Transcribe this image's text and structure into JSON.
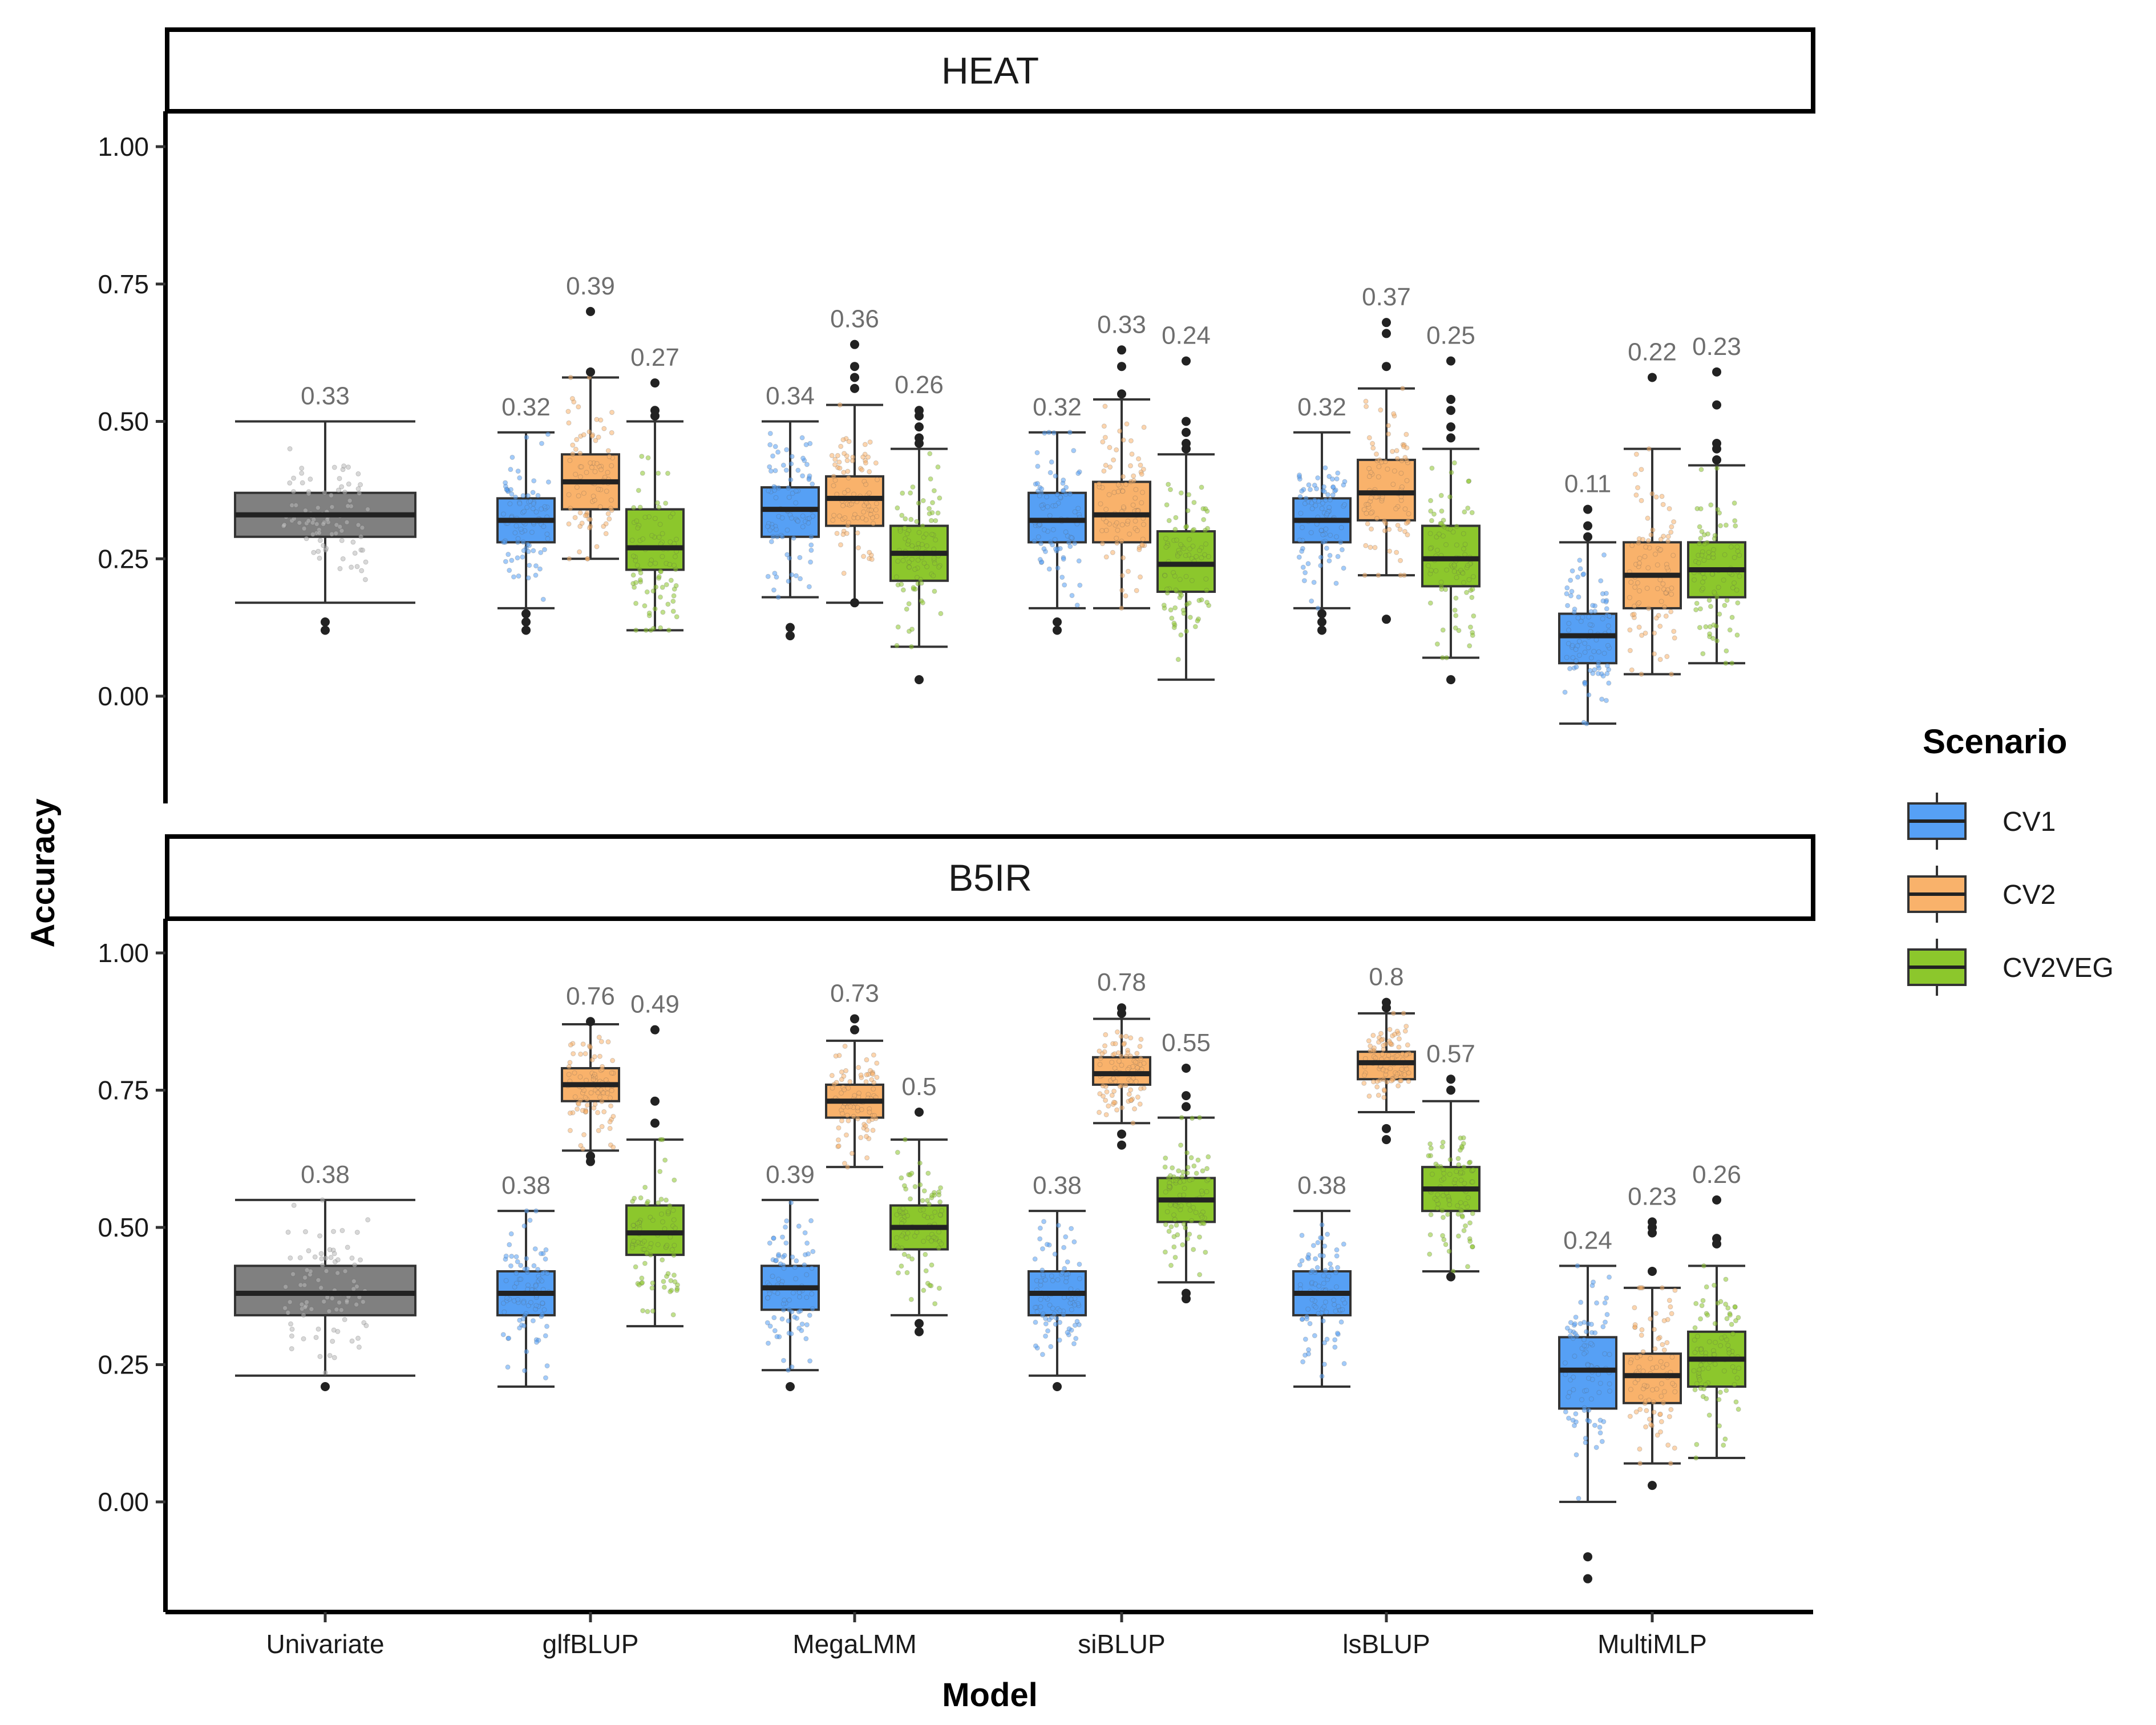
{
  "chart_data": {
    "type": "boxplot",
    "xlabel": "Model",
    "ylabel": "Accuracy",
    "legend": {
      "title": "Scenario",
      "position": "right",
      "entries": [
        {
          "name": "CV1",
          "color": "#56A0F5"
        },
        {
          "name": "CV2",
          "color": "#F9B26B"
        },
        {
          "name": "CV2VEG",
          "color": "#8CC72C"
        }
      ]
    },
    "univariate_color": "#808080",
    "categories": [
      "Univariate",
      "glfBLUP",
      "MegaLMM",
      "siBLUP",
      "lsBLUP",
      "MultiMLP"
    ],
    "ylim": [
      -0.2,
      1.05
    ],
    "yticks": [
      0.0,
      0.25,
      0.5,
      0.75,
      1.0
    ],
    "ytick_labels": [
      "0.00",
      "0.25",
      "0.50",
      "0.75",
      "1.00"
    ],
    "panels": [
      {
        "title": "HEAT",
        "boxes": [
          {
            "model": "Univariate",
            "scenario": "Univariate",
            "lw": 0.17,
            "q1": 0.29,
            "median": 0.33,
            "q3": 0.37,
            "uw": 0.5,
            "outliers": [
              0.12,
              0.135
            ],
            "label": "0.33"
          },
          {
            "model": "glfBLUP",
            "scenario": "CV1",
            "lw": 0.16,
            "q1": 0.28,
            "median": 0.32,
            "q3": 0.36,
            "uw": 0.48,
            "outliers": [
              0.12,
              0.135,
              0.15
            ],
            "label": "0.32"
          },
          {
            "model": "glfBLUP",
            "scenario": "CV2",
            "lw": 0.25,
            "q1": 0.34,
            "median": 0.39,
            "q3": 0.44,
            "uw": 0.58,
            "outliers": [
              0.59,
              0.7
            ],
            "label": "0.39"
          },
          {
            "model": "glfBLUP",
            "scenario": "CV2VEG",
            "lw": 0.12,
            "q1": 0.23,
            "median": 0.27,
            "q3": 0.34,
            "uw": 0.5,
            "outliers": [
              0.51,
              0.52,
              0.57
            ],
            "label": "0.27"
          },
          {
            "model": "MegaLMM",
            "scenario": "CV1",
            "lw": 0.18,
            "q1": 0.29,
            "median": 0.34,
            "q3": 0.38,
            "uw": 0.5,
            "outliers": [
              0.11,
              0.125
            ],
            "label": "0.34"
          },
          {
            "model": "MegaLMM",
            "scenario": "CV2",
            "lw": 0.17,
            "q1": 0.31,
            "median": 0.36,
            "q3": 0.4,
            "uw": 0.53,
            "outliers": [
              0.17,
              0.56,
              0.58,
              0.6,
              0.64
            ],
            "label": "0.36"
          },
          {
            "model": "MegaLMM",
            "scenario": "CV2VEG",
            "lw": 0.09,
            "q1": 0.21,
            "median": 0.26,
            "q3": 0.31,
            "uw": 0.45,
            "outliers": [
              0.03,
              0.46,
              0.47,
              0.49,
              0.51,
              0.52
            ],
            "label": "0.26"
          },
          {
            "model": "siBLUP",
            "scenario": "CV1",
            "lw": 0.16,
            "q1": 0.28,
            "median": 0.32,
            "q3": 0.37,
            "uw": 0.48,
            "outliers": [
              0.12,
              0.135
            ],
            "label": "0.32"
          },
          {
            "model": "siBLUP",
            "scenario": "CV2",
            "lw": 0.16,
            "q1": 0.28,
            "median": 0.33,
            "q3": 0.39,
            "uw": 0.54,
            "outliers": [
              0.55,
              0.6,
              0.63
            ],
            "label": "0.33"
          },
          {
            "model": "siBLUP",
            "scenario": "CV2VEG",
            "lw": 0.03,
            "q1": 0.19,
            "median": 0.24,
            "q3": 0.3,
            "uw": 0.44,
            "outliers": [
              0.45,
              0.46,
              0.48,
              0.5,
              0.61
            ],
            "label": "0.24"
          },
          {
            "model": "lsBLUP",
            "scenario": "CV1",
            "lw": 0.16,
            "q1": 0.28,
            "median": 0.32,
            "q3": 0.36,
            "uw": 0.48,
            "outliers": [
              0.12,
              0.135,
              0.15
            ],
            "label": "0.32"
          },
          {
            "model": "lsBLUP",
            "scenario": "CV2",
            "lw": 0.22,
            "q1": 0.32,
            "median": 0.37,
            "q3": 0.43,
            "uw": 0.56,
            "outliers": [
              0.14,
              0.6,
              0.66,
              0.68
            ],
            "label": "0.37"
          },
          {
            "model": "lsBLUP",
            "scenario": "CV2VEG",
            "lw": 0.07,
            "q1": 0.2,
            "median": 0.25,
            "q3": 0.31,
            "uw": 0.45,
            "outliers": [
              0.03,
              0.47,
              0.49,
              0.52,
              0.54,
              0.61
            ],
            "label": "0.25"
          },
          {
            "model": "MultiMLP",
            "scenario": "CV1",
            "lw": -0.05,
            "q1": 0.06,
            "median": 0.11,
            "q3": 0.15,
            "uw": 0.28,
            "outliers": [
              0.29,
              0.31,
              0.34
            ],
            "label": "0.11"
          },
          {
            "model": "MultiMLP",
            "scenario": "CV2",
            "lw": 0.04,
            "q1": 0.16,
            "median": 0.22,
            "q3": 0.28,
            "uw": 0.45,
            "outliers": [
              0.58
            ],
            "label": "0.22"
          },
          {
            "model": "MultiMLP",
            "scenario": "CV2VEG",
            "lw": 0.06,
            "q1": 0.18,
            "median": 0.23,
            "q3": 0.28,
            "uw": 0.42,
            "outliers": [
              0.43,
              0.45,
              0.46,
              0.53,
              0.59
            ],
            "label": "0.23"
          }
        ]
      },
      {
        "title": "B5IR",
        "boxes": [
          {
            "model": "Univariate",
            "scenario": "Univariate",
            "lw": 0.23,
            "q1": 0.34,
            "median": 0.38,
            "q3": 0.43,
            "uw": 0.55,
            "outliers": [
              0.21
            ],
            "label": "0.38"
          },
          {
            "model": "glfBLUP",
            "scenario": "CV1",
            "lw": 0.21,
            "q1": 0.34,
            "median": 0.38,
            "q3": 0.42,
            "uw": 0.53,
            "outliers": [],
            "label": "0.38"
          },
          {
            "model": "glfBLUP",
            "scenario": "CV2",
            "lw": 0.64,
            "q1": 0.73,
            "median": 0.76,
            "q3": 0.79,
            "uw": 0.87,
            "outliers": [
              0.62,
              0.63,
              0.875
            ],
            "label": "0.76"
          },
          {
            "model": "glfBLUP",
            "scenario": "CV2VEG",
            "lw": 0.32,
            "q1": 0.45,
            "median": 0.49,
            "q3": 0.54,
            "uw": 0.66,
            "outliers": [
              0.69,
              0.73,
              0.86
            ],
            "label": "0.49"
          },
          {
            "model": "MegaLMM",
            "scenario": "CV1",
            "lw": 0.24,
            "q1": 0.35,
            "median": 0.39,
            "q3": 0.43,
            "uw": 0.55,
            "outliers": [
              0.21
            ],
            "label": "0.39"
          },
          {
            "model": "MegaLMM",
            "scenario": "CV2",
            "lw": 0.61,
            "q1": 0.7,
            "median": 0.73,
            "q3": 0.76,
            "uw": 0.84,
            "outliers": [
              0.86,
              0.88
            ],
            "label": "0.73"
          },
          {
            "model": "MegaLMM",
            "scenario": "CV2VEG",
            "lw": 0.34,
            "q1": 0.46,
            "median": 0.5,
            "q3": 0.54,
            "uw": 0.66,
            "outliers": [
              0.31,
              0.325,
              0.71
            ],
            "label": "0.5"
          },
          {
            "model": "siBLUP",
            "scenario": "CV1",
            "lw": 0.23,
            "q1": 0.34,
            "median": 0.38,
            "q3": 0.42,
            "uw": 0.53,
            "outliers": [
              0.21
            ],
            "label": "0.38"
          },
          {
            "model": "siBLUP",
            "scenario": "CV2",
            "lw": 0.69,
            "q1": 0.76,
            "median": 0.78,
            "q3": 0.81,
            "uw": 0.88,
            "outliers": [
              0.65,
              0.67,
              0.89,
              0.9
            ],
            "label": "0.78"
          },
          {
            "model": "siBLUP",
            "scenario": "CV2VEG",
            "lw": 0.4,
            "q1": 0.51,
            "median": 0.55,
            "q3": 0.59,
            "uw": 0.7,
            "outliers": [
              0.37,
              0.38,
              0.72,
              0.74,
              0.79
            ],
            "label": "0.55"
          },
          {
            "model": "lsBLUP",
            "scenario": "CV1",
            "lw": 0.21,
            "q1": 0.34,
            "median": 0.38,
            "q3": 0.42,
            "uw": 0.53,
            "outliers": [],
            "label": "0.38"
          },
          {
            "model": "lsBLUP",
            "scenario": "CV2",
            "lw": 0.71,
            "q1": 0.77,
            "median": 0.8,
            "q3": 0.82,
            "uw": 0.89,
            "outliers": [
              0.66,
              0.68,
              0.9,
              0.91
            ],
            "label": "0.8"
          },
          {
            "model": "lsBLUP",
            "scenario": "CV2VEG",
            "lw": 0.42,
            "q1": 0.53,
            "median": 0.57,
            "q3": 0.61,
            "uw": 0.73,
            "outliers": [
              0.41,
              0.75,
              0.77
            ],
            "label": "0.57"
          },
          {
            "model": "MultiMLP",
            "scenario": "CV1",
            "lw": 0.0,
            "q1": 0.17,
            "median": 0.24,
            "q3": 0.3,
            "uw": 0.43,
            "outliers": [
              -0.1,
              -0.14
            ],
            "label": "0.24"
          },
          {
            "model": "MultiMLP",
            "scenario": "CV2",
            "lw": 0.07,
            "q1": 0.18,
            "median": 0.23,
            "q3": 0.27,
            "uw": 0.39,
            "outliers": [
              0.03,
              0.42,
              0.49,
              0.5,
              0.51
            ],
            "label": "0.23"
          },
          {
            "model": "MultiMLP",
            "scenario": "CV2VEG",
            "lw": 0.08,
            "q1": 0.21,
            "median": 0.26,
            "q3": 0.31,
            "uw": 0.43,
            "outliers": [
              0.47,
              0.48,
              0.55
            ],
            "label": "0.26"
          }
        ]
      }
    ]
  }
}
